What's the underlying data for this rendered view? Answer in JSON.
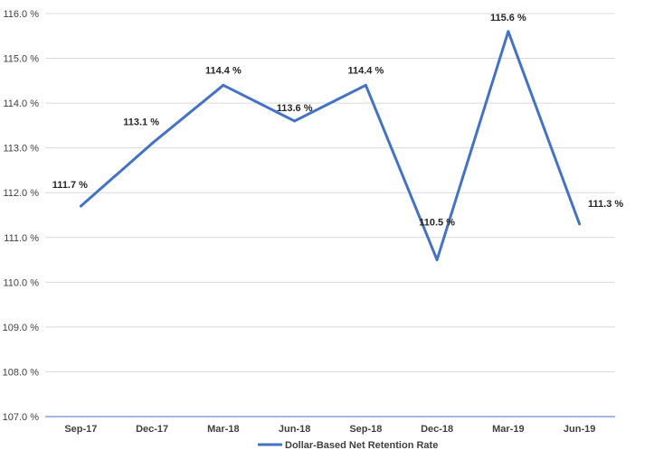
{
  "chart_data": {
    "type": "line",
    "categories": [
      "Sep-17",
      "Dec-17",
      "Mar-18",
      "Jun-18",
      "Sep-18",
      "Dec-18",
      "Mar-19",
      "Jun-19"
    ],
    "series": [
      {
        "name": "Dollar-Based Net Retention Rate",
        "values": [
          111.7,
          113.1,
          114.4,
          113.6,
          114.4,
          110.5,
          115.6,
          111.3
        ],
        "labels": [
          "111.7 %",
          "113.1 %",
          "114.4 %",
          "113.6 %",
          "114.4 %",
          "110.5 %",
          "115.6 %",
          "111.3 %"
        ],
        "color": "#4472C4"
      }
    ],
    "ylim": [
      107.0,
      116.0
    ],
    "yticks": [
      107.0,
      108.0,
      109.0,
      110.0,
      111.0,
      112.0,
      113.0,
      114.0,
      115.0,
      116.0
    ],
    "ytick_labels": [
      "107.0 %",
      "108.0 %",
      "109.0 %",
      "110.0 %",
      "111.0 %",
      "112.0 %",
      "113.0 %",
      "114.0 %",
      "115.0 %",
      "116.0 %"
    ],
    "grid": true,
    "legend_position": "bottom",
    "gridline_color": "#D9D9D9",
    "axis_color": "#4472C4"
  }
}
